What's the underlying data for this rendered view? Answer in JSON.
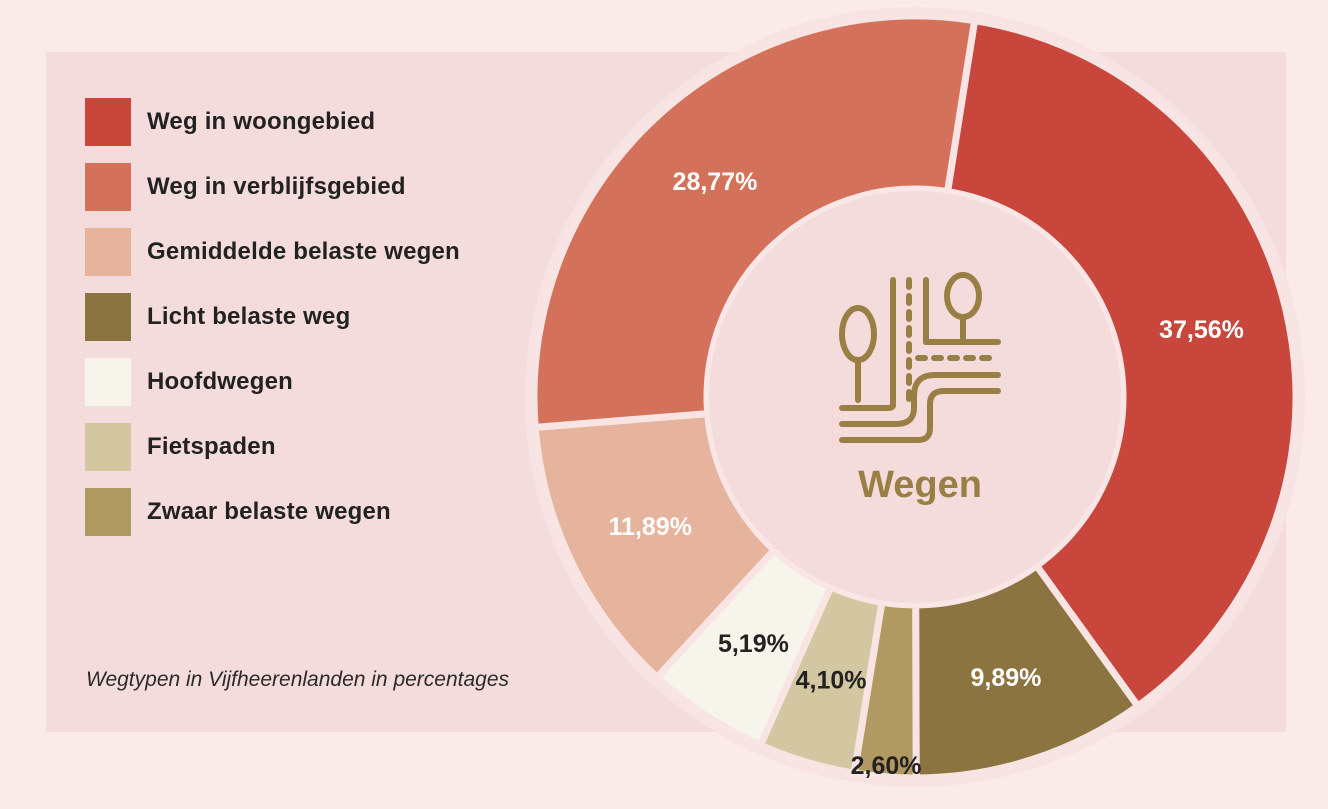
{
  "chart_data": {
    "type": "pie",
    "title": "",
    "center_label": "Wegen",
    "caption": "Wegtypen in Vijfheerenlanden in percentages",
    "legend_position": "left",
    "segments": [
      {
        "name": "Weg in woongebied",
        "value": 37.56,
        "label": "37,56%",
        "color": "#c8463c",
        "label_color": "#ffffff"
      },
      {
        "name": "Licht belaste weg",
        "value": 9.89,
        "label": "9,89%",
        "color": "#8b7440",
        "label_color": "#ffffff"
      },
      {
        "name": "Zwaar belaste wegen",
        "value": 2.6,
        "label": "2,60%",
        "color": "#b09a62",
        "label_color": "#222222"
      },
      {
        "name": "Fietspaden",
        "value": 4.1,
        "label": "4,10%",
        "color": "#d3c7a2",
        "label_color": "#222222"
      },
      {
        "name": "Hoofdwegen",
        "value": 5.19,
        "label": "5,19%",
        "color": "#f7f4ec",
        "label_color": "#222222"
      },
      {
        "name": "Gemiddelde belaste wegen",
        "value": 11.89,
        "label": "11,89%",
        "color": "#e6b49c",
        "label_color": "#ffffff"
      },
      {
        "name": "Weg in verblijfsgebied",
        "value": 28.77,
        "label": "28,77%",
        "color": "#d3715a",
        "label_color": "#ffffff"
      }
    ],
    "legend": [
      {
        "label": "Weg in woongebied",
        "color": "#c8463c"
      },
      {
        "label": "Weg in verblijfsgebied",
        "color": "#d3715a"
      },
      {
        "label": "Gemiddelde belaste wegen",
        "color": "#e6b49c"
      },
      {
        "label": "Licht belaste weg",
        "color": "#8b7440"
      },
      {
        "label": "Hoofdwegen",
        "color": "#f7f4ec"
      },
      {
        "label": "Fietspaden",
        "color": "#d3c7a2"
      },
      {
        "label": "Zwaar belaste wegen",
        "color": "#b09a62"
      }
    ]
  },
  "center_icon": "road-with-trees-icon",
  "colors": {
    "page_background": "#fbeaea",
    "panel_background": "#f5dcdc",
    "icon": "#9a7f45"
  }
}
